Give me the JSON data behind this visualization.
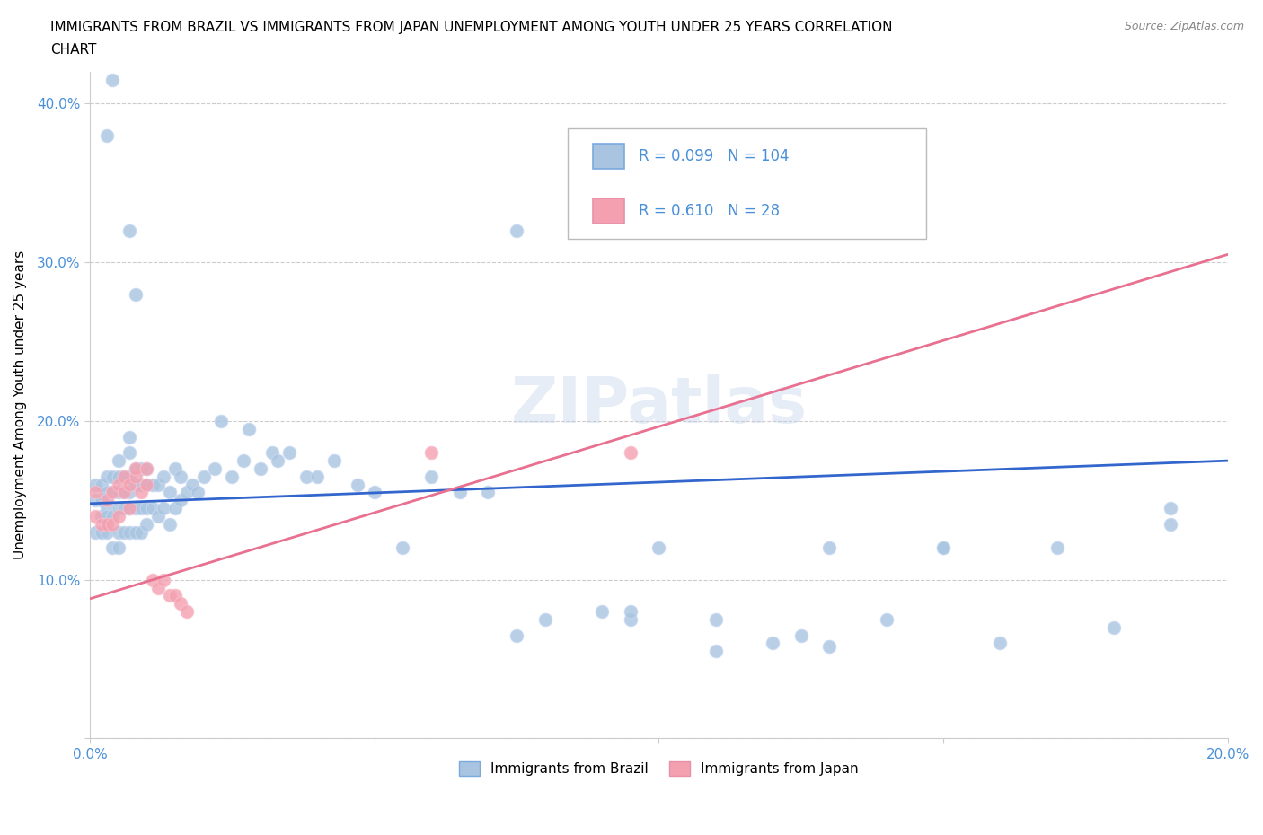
{
  "title_line1": "IMMIGRANTS FROM BRAZIL VS IMMIGRANTS FROM JAPAN UNEMPLOYMENT AMONG YOUTH UNDER 25 YEARS CORRELATION",
  "title_line2": "CHART",
  "source": "Source: ZipAtlas.com",
  "ylabel": "Unemployment Among Youth under 25 years",
  "xlim": [
    0.0,
    0.2
  ],
  "ylim": [
    0.0,
    0.42
  ],
  "brazil_color": "#a8c4e0",
  "japan_color": "#f4a0b0",
  "brazil_line_color": "#3366cc",
  "japan_line_color": "#e87090",
  "brazil_R": 0.099,
  "brazil_N": 104,
  "japan_R": 0.61,
  "japan_N": 28,
  "legend_label_brazil": "Immigrants from Brazil",
  "legend_label_japan": "Immigrants from Japan",
  "watermark": "ZIPatlas",
  "brazil_line_x0": 0.0,
  "brazil_line_y0": 0.148,
  "brazil_line_x1": 0.2,
  "brazil_line_y1": 0.175,
  "japan_line_x0": 0.0,
  "japan_line_y0": 0.088,
  "japan_line_x1": 0.2,
  "japan_line_y1": 0.305,
  "brazil_x": [
    0.001,
    0.001,
    0.001,
    0.002,
    0.002,
    0.002,
    0.002,
    0.003,
    0.003,
    0.003,
    0.003,
    0.003,
    0.004,
    0.004,
    0.004,
    0.004,
    0.005,
    0.005,
    0.005,
    0.005,
    0.005,
    0.005,
    0.006,
    0.006,
    0.006,
    0.006,
    0.007,
    0.007,
    0.007,
    0.007,
    0.007,
    0.007,
    0.008,
    0.008,
    0.008,
    0.008,
    0.009,
    0.009,
    0.009,
    0.009,
    0.01,
    0.01,
    0.01,
    0.01,
    0.011,
    0.011,
    0.012,
    0.012,
    0.013,
    0.013,
    0.014,
    0.014,
    0.015,
    0.015,
    0.016,
    0.016,
    0.017,
    0.018,
    0.019,
    0.02,
    0.022,
    0.023,
    0.025,
    0.027,
    0.028,
    0.03,
    0.032,
    0.033,
    0.035,
    0.038,
    0.04,
    0.043,
    0.047,
    0.05,
    0.055,
    0.06,
    0.065,
    0.07,
    0.08,
    0.09,
    0.095,
    0.1,
    0.11,
    0.12,
    0.13,
    0.14,
    0.15,
    0.16,
    0.17,
    0.18,
    0.003,
    0.004,
    0.075,
    0.19,
    0.19,
    0.095,
    0.125,
    0.15,
    0.075,
    0.11,
    0.007,
    0.008,
    0.095,
    0.13
  ],
  "brazil_y": [
    0.15,
    0.13,
    0.16,
    0.14,
    0.15,
    0.13,
    0.16,
    0.13,
    0.145,
    0.155,
    0.165,
    0.14,
    0.12,
    0.14,
    0.155,
    0.165,
    0.12,
    0.13,
    0.145,
    0.155,
    0.165,
    0.175,
    0.13,
    0.145,
    0.155,
    0.165,
    0.13,
    0.145,
    0.155,
    0.165,
    0.18,
    0.19,
    0.13,
    0.145,
    0.16,
    0.17,
    0.13,
    0.145,
    0.16,
    0.17,
    0.135,
    0.145,
    0.16,
    0.17,
    0.145,
    0.16,
    0.14,
    0.16,
    0.145,
    0.165,
    0.135,
    0.155,
    0.145,
    0.17,
    0.15,
    0.165,
    0.155,
    0.16,
    0.155,
    0.165,
    0.17,
    0.2,
    0.165,
    0.175,
    0.195,
    0.17,
    0.18,
    0.175,
    0.18,
    0.165,
    0.165,
    0.175,
    0.16,
    0.155,
    0.12,
    0.165,
    0.155,
    0.155,
    0.075,
    0.08,
    0.075,
    0.12,
    0.075,
    0.06,
    0.12,
    0.075,
    0.12,
    0.06,
    0.12,
    0.07,
    0.38,
    0.415,
    0.32,
    0.145,
    0.135,
    0.32,
    0.065,
    0.12,
    0.065,
    0.055,
    0.32,
    0.28,
    0.08,
    0.058
  ],
  "japan_x": [
    0.001,
    0.001,
    0.002,
    0.003,
    0.003,
    0.004,
    0.004,
    0.005,
    0.005,
    0.006,
    0.006,
    0.007,
    0.007,
    0.008,
    0.008,
    0.009,
    0.01,
    0.01,
    0.011,
    0.012,
    0.013,
    0.014,
    0.015,
    0.016,
    0.017,
    0.06,
    0.095,
    0.13
  ],
  "japan_y": [
    0.14,
    0.155,
    0.135,
    0.135,
    0.15,
    0.135,
    0.155,
    0.14,
    0.16,
    0.155,
    0.165,
    0.145,
    0.16,
    0.165,
    0.17,
    0.155,
    0.16,
    0.17,
    0.1,
    0.095,
    0.1,
    0.09,
    0.09,
    0.085,
    0.08,
    0.18,
    0.18,
    0.355
  ]
}
